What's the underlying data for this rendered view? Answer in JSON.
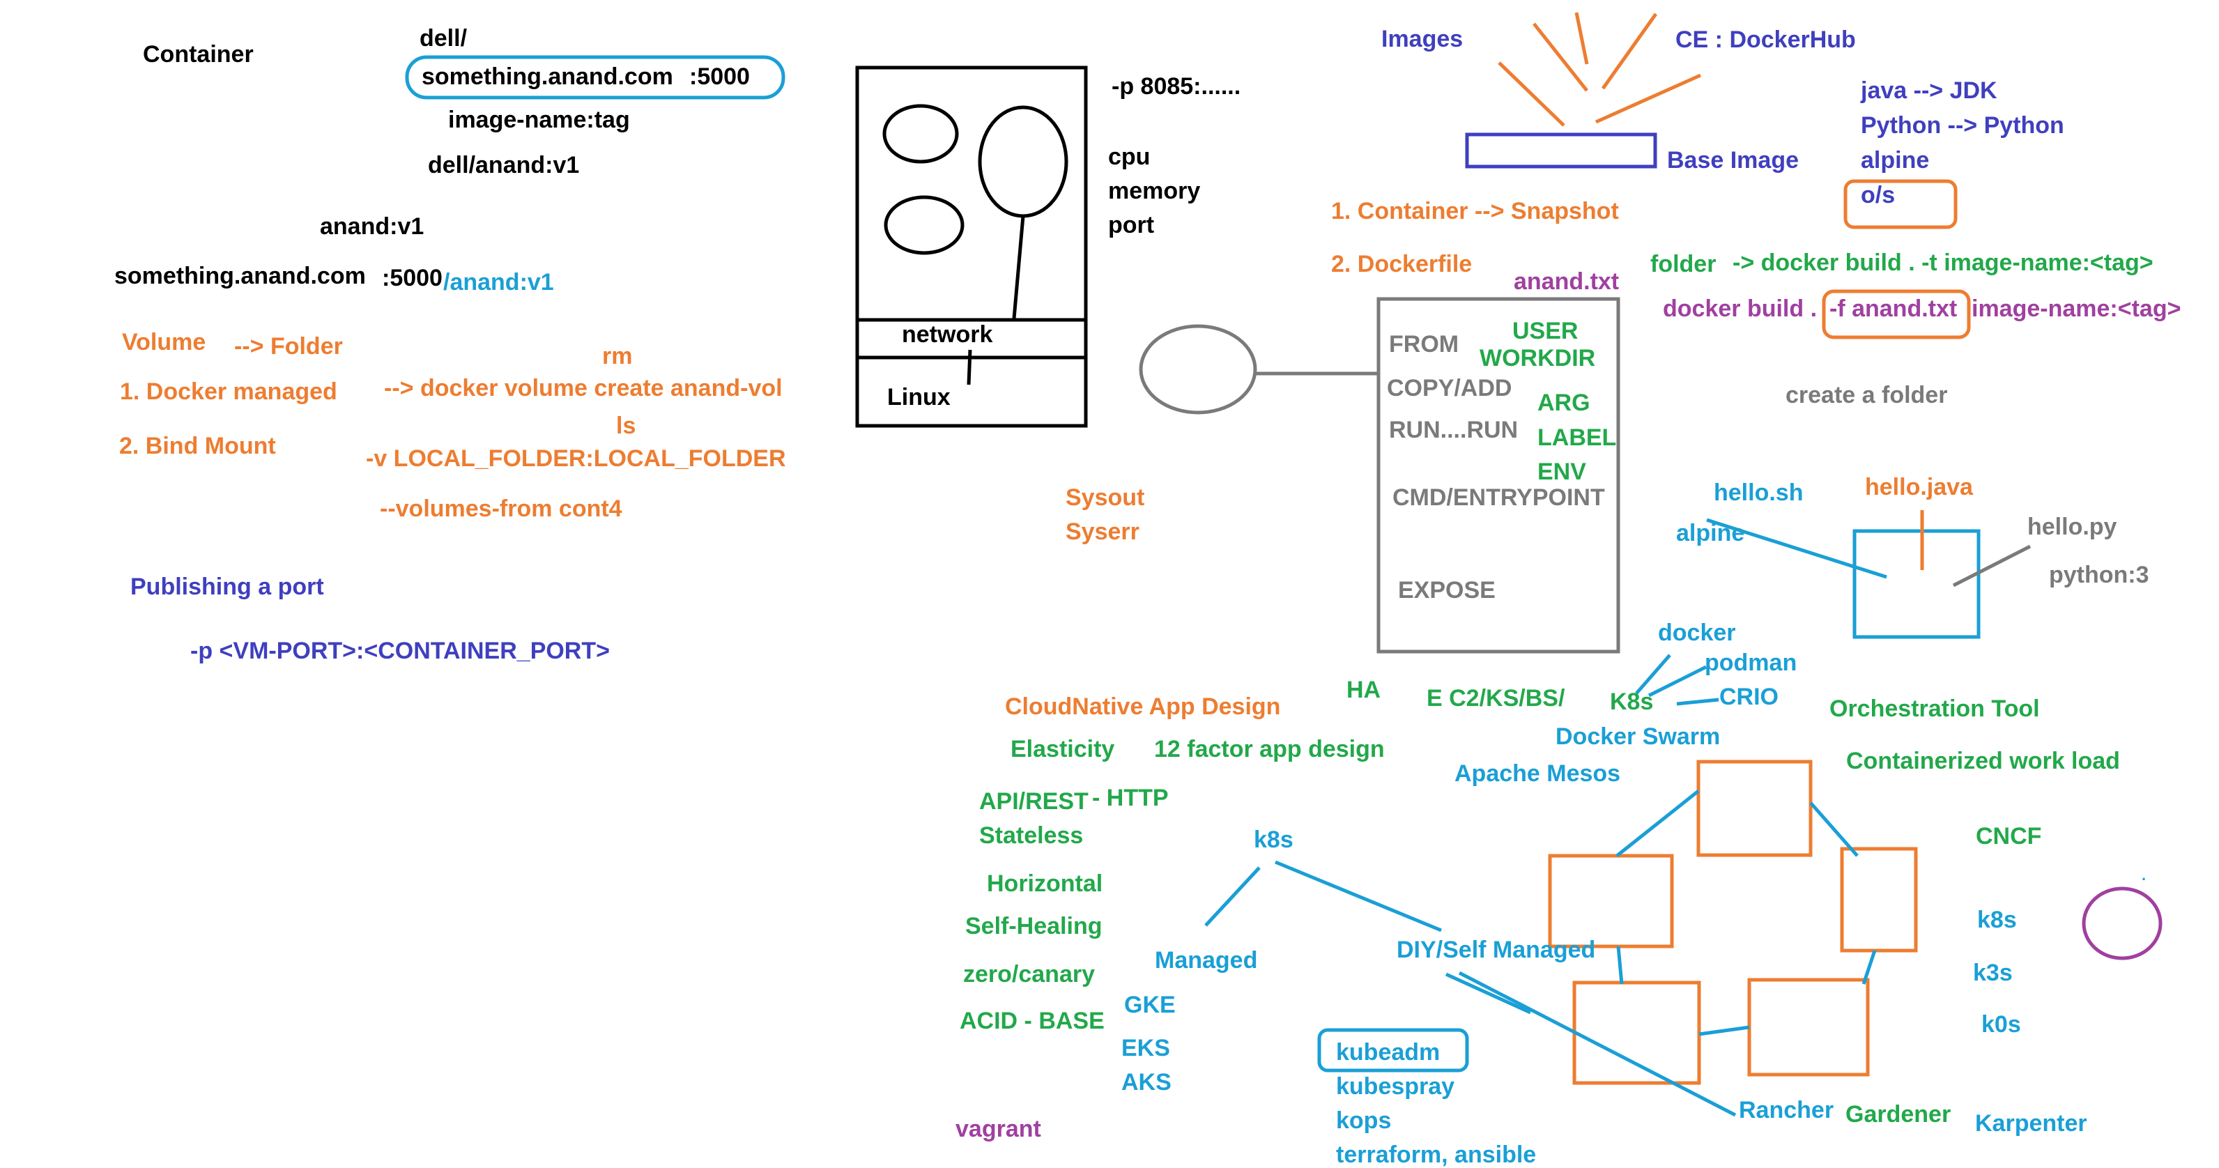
{
  "colors": {
    "black": "#000000",
    "orange": "#ed7d31",
    "blue": "#3f3fbf",
    "cyan": "#1a9fd6",
    "green": "#22a84a",
    "purple": "#a040a0",
    "gray": "#7a7a7a"
  },
  "labels": {
    "container": "Container",
    "dell": "dell/",
    "registry_host": "something.anand.com",
    "registry_port": ":5000",
    "image_name_tag": "image-name:tag",
    "dell_anand_v1": "dell/anand:v1",
    "anand_v1": "anand:v1",
    "full_host": "something.anand.com",
    "full_port": ":5000",
    "full_repo": "/anand:v1",
    "volume": "Volume",
    "volume_folder": "--> Folder",
    "rm": "rm",
    "docker_managed": "1. Docker managed",
    "volume_create": "--> docker volume create anand-vol",
    "ls": "ls",
    "bind_mount": "2. Bind Mount",
    "bind_flag": "-v LOCAL_FOLDER:LOCAL_FOLDER",
    "volumes_from": "--volumes-from cont4",
    "publishing_port": "Publishing a port",
    "port_flag": "-p <VM-PORT>:<CONTAINER_PORT>",
    "port_example": "-p 8085:......",
    "cpu": "cpu",
    "memory": "memory",
    "port": "port",
    "network": "network",
    "linux": "Linux",
    "sysout": "Sysout",
    "syserr": "Syserr",
    "images": "Images",
    "ce_dockerhub": "CE : DockerHub",
    "base_image": "Base Image",
    "java_jdk": "java --> JDK",
    "python_python": "Python --> Python",
    "alpine_top": "alpine",
    "os": "o/s",
    "container_snapshot": "1. Container --> Snapshot",
    "dockerfile": "2. Dockerfile",
    "anand_txt": "anand.txt",
    "folder": "folder",
    "docker_build_t": "-> docker build . -t image-name:<tag>",
    "docker_build_f_pre": "docker build .",
    "docker_build_f_flag": "-f anand.txt",
    "docker_build_f_post": "image-name:<tag>",
    "df_from": "FROM",
    "df_copy_add": "COPY/ADD",
    "df_run": "RUN....RUN",
    "df_cmd": "CMD/ENTRYPOINT",
    "df_expose": "EXPOSE",
    "df_user": "USER",
    "df_workdir": "WORKDIR",
    "df_arg": "ARG",
    "df_label": "LABEL",
    "df_env": "ENV",
    "create_folder": "create a folder",
    "hello_sh": "hello.sh",
    "hello_java": "hello.java",
    "hello_py": "hello.py",
    "alpine_mid": "alpine",
    "python3": "python:3",
    "docker": "docker",
    "podman": "podman",
    "crio": "CRIO",
    "k8s_small": "K8s",
    "orchestration": "Orchestration Tool",
    "ha": "HA",
    "ec2": "E C2/KS/BS/",
    "cloudnative": "CloudNative App Design",
    "elasticity": "Elasticity",
    "twelve_factor": "12 factor app design",
    "docker_swarm": "Docker Swarm",
    "containerized": "Containerized work load",
    "apache_mesos": "Apache Mesos",
    "api_rest": "API/REST",
    "http": "- HTTP",
    "stateless": "Stateless",
    "k8s_center": "k8s",
    "cncf": "CNCF",
    "horizontal": "Horizontal",
    "self_healing": "Self-Healing",
    "managed": "Managed",
    "diy": "DIY/Self Managed",
    "k8s_right": "k8s",
    "zero_canary": "zero/canary",
    "k3s": "k3s",
    "gke": "GKE",
    "acid_base": "ACID - BASE",
    "k0s": "k0s",
    "eks": "EKS",
    "kubeadm": "kubeadm",
    "aks": "AKS",
    "kubespray": "kubespray",
    "rancher": "Rancher",
    "gardener": "Gardener",
    "karpenter": "Karpenter",
    "kops": "kops",
    "vagrant": "vagrant",
    "terraform": "terraform, ansible",
    "dot": "."
  }
}
